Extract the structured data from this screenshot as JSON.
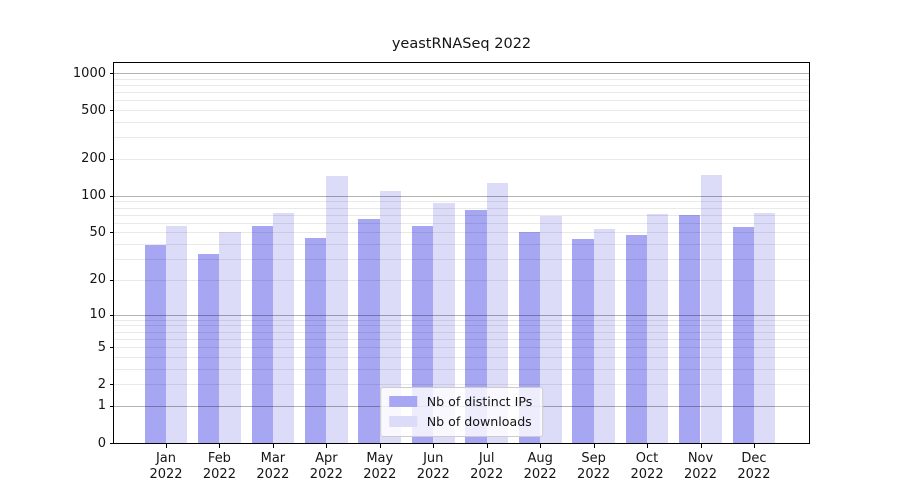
{
  "title": "yeastRNASeq 2022",
  "chart_data": {
    "type": "bar",
    "title": "yeastRNASeq 2022",
    "xlabel": "",
    "ylabel": "",
    "scale": "log1p",
    "grid": "on",
    "legend_position": "lower center",
    "year": "2022",
    "categories": [
      "Jan",
      "Feb",
      "Mar",
      "Apr",
      "May",
      "Jun",
      "Jul",
      "Aug",
      "Sep",
      "Oct",
      "Nov",
      "Dec"
    ],
    "series": [
      {
        "name": "Nb of distinct IPs",
        "color": "#a6a6f2",
        "values": [
          39,
          33,
          57,
          45,
          64,
          56,
          77,
          50,
          44,
          48,
          69,
          55
        ]
      },
      {
        "name": "Nb of downloads",
        "color": "#dcdcf9",
        "values": [
          57,
          50,
          72,
          144,
          110,
          87,
          128,
          68,
          53,
          71,
          147,
          72
        ]
      }
    ],
    "y_ticks": [
      1000,
      500,
      200,
      100,
      50,
      20,
      10,
      5,
      2,
      1,
      0
    ],
    "ylim": [
      0,
      1200
    ],
    "colors": {
      "grid_major": "#b3b3b3",
      "grid_minor": "#e8e8e8",
      "axis": "#000000",
      "text": "#151515"
    }
  }
}
